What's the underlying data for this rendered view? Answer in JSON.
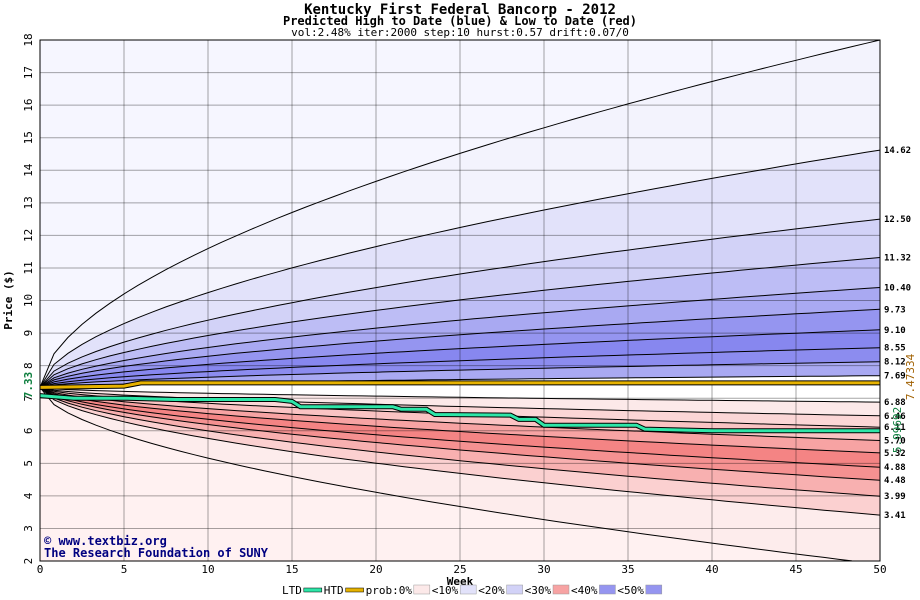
{
  "chart_data": {
    "type": "area",
    "title": "Kentucky First Federal Bancorp - 2012",
    "subtitle": "Predicted High to Date (blue) &  Low to Date (red)",
    "params": "vol:2.48% iter:2000 step:10 hurst:0.57 drift:0.07/0",
    "xlabel": "Week",
    "ylabel": "Price ($)",
    "xlim": [
      0,
      50
    ],
    "ylim": [
      2,
      18
    ],
    "xticks": [
      0,
      5,
      10,
      15,
      20,
      25,
      30,
      35,
      40,
      45,
      50
    ],
    "yticks": [
      2,
      3,
      4,
      5,
      6,
      7,
      8,
      9,
      10,
      11,
      12,
      13,
      14,
      15,
      16,
      17,
      18
    ],
    "grid": true,
    "start_price": 7.33,
    "start_label": "7.33",
    "high_to_date_current": 7.47334,
    "high_to_date_label": "7.47334",
    "low_to_date_current": 5.99692,
    "low_to_date_label": "5.99692",
    "upper_percentile_curves": [
      {
        "final": 18.0,
        "label": ""
      },
      {
        "final": 14.62,
        "label": "14.62"
      },
      {
        "final": 12.5,
        "label": "12.50"
      },
      {
        "final": 11.32,
        "label": "11.32"
      },
      {
        "final": 10.4,
        "label": "10.40"
      },
      {
        "final": 9.73,
        "label": "9.73"
      },
      {
        "final": 9.1,
        "label": "9.10"
      },
      {
        "final": 8.55,
        "label": "8.55"
      },
      {
        "final": 8.12,
        "label": "8.12"
      },
      {
        "final": 7.69,
        "label": "7.69"
      }
    ],
    "lower_percentile_curves": [
      {
        "final": 6.88,
        "label": "6.88"
      },
      {
        "final": 6.46,
        "label": "6.46"
      },
      {
        "final": 6.11,
        "label": "6.11"
      },
      {
        "final": 5.7,
        "label": "5.70"
      },
      {
        "final": 5.32,
        "label": "5.32"
      },
      {
        "final": 4.88,
        "label": "4.88"
      },
      {
        "final": 4.48,
        "label": "4.48"
      },
      {
        "final": 3.99,
        "label": "3.99"
      },
      {
        "final": 3.41,
        "label": "3.41"
      },
      {
        "final": 1.9,
        "label": ""
      }
    ],
    "upper_band_colors": [
      "#f3f3fd",
      "#e2e2fa",
      "#d2d2f7",
      "#bdbdf5",
      "#a9a9f2",
      "#9595f0",
      "#8787ef",
      "#8c8cef",
      "#a9a9f2"
    ],
    "lower_band_colors": [
      "#fce9e9",
      "#fbd6d6",
      "#fac3c3",
      "#f7a3a3",
      "#f48484",
      "#f59191",
      "#f8b0b0",
      "#fbd0d0",
      "#fdecec"
    ],
    "outer_upper_color": "#f6f6ff",
    "outer_lower_color": "#fff1f1",
    "high_to_date_path": {
      "x": [
        0,
        5,
        6,
        50
      ],
      "y": [
        7.33,
        7.37,
        7.47,
        7.47
      ]
    },
    "low_to_date_path": {
      "x": [
        0,
        2,
        5,
        8,
        10,
        14,
        15,
        15.5,
        21,
        21.5,
        23,
        23.5,
        28,
        28.5,
        29.5,
        30,
        35.5,
        36,
        40,
        50
      ],
      "y": [
        7.08,
        7.0,
        7.0,
        6.96,
        6.96,
        6.96,
        6.9,
        6.74,
        6.74,
        6.66,
        6.66,
        6.5,
        6.48,
        6.35,
        6.35,
        6.17,
        6.17,
        6.05,
        6.0,
        6.0
      ]
    },
    "watermark": {
      "line1": "www.textbiz.org",
      "line2": "The Research Foundation of SUNY"
    },
    "legend": [
      {
        "label": "LTD",
        "kind": "line",
        "color": "#2ee6a8"
      },
      {
        "label": "HTD",
        "kind": "line",
        "color": "#e6b200"
      },
      {
        "label": "prob:0%",
        "kind": "swatch",
        "color": "#ffffff"
      },
      {
        "label": "<10%",
        "kind": "swatch",
        "color": "#fce9e9"
      },
      {
        "label": "<20%",
        "kind": "swatch",
        "color": "#e2e2fa"
      },
      {
        "label": "<30%",
        "kind": "swatch",
        "color": "#d2d2f7"
      },
      {
        "label": "<40%",
        "kind": "swatch",
        "color": "#f7a3a3"
      },
      {
        "label": "<50%",
        "kind": "swatch",
        "color": "#9595f0"
      }
    ]
  }
}
